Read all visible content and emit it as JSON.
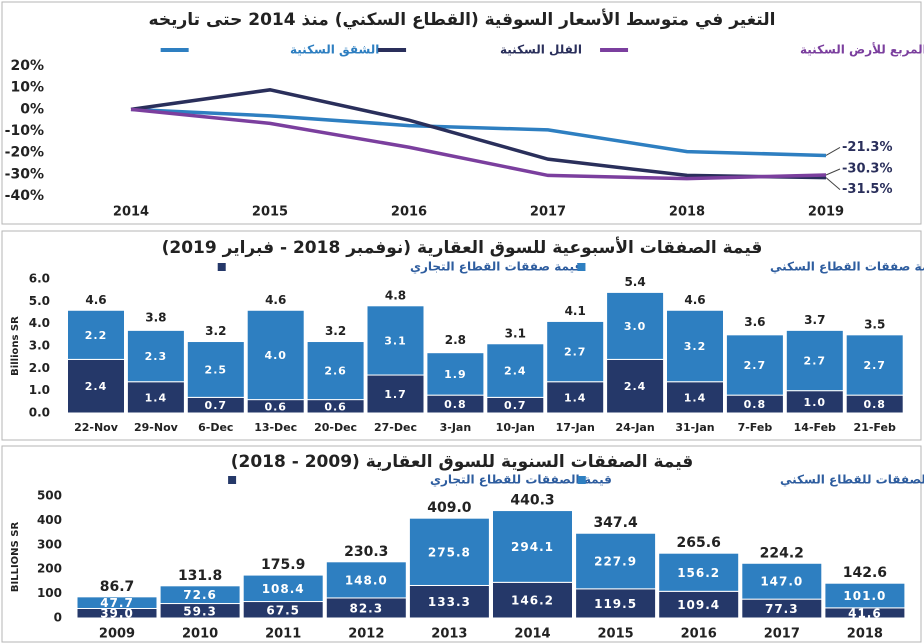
{
  "chart_data": [
    {
      "type": "line",
      "title": "التغير في متوسط الأسعار السوقية (القطاع السكني) منذ 2014 حتى تاريخه",
      "categories": [
        "2014",
        "2015",
        "2016",
        "2017",
        "2018",
        "2019"
      ],
      "series": [
        {
          "name": "الشقق السكنية",
          "color": "#2e7fc1",
          "values": [
            0,
            -3,
            -7.5,
            -9.5,
            -19.5,
            -21.3
          ],
          "value_labels": [
            null,
            null,
            null,
            null,
            null,
            "-21.3%"
          ]
        },
        {
          "name": "الفلل السكنية",
          "color": "#2a2f5b",
          "values": [
            0,
            9,
            -5,
            -23,
            -30.5,
            -31.5
          ],
          "value_labels": [
            null,
            null,
            null,
            null,
            null,
            "-31.5%"
          ]
        },
        {
          "name": "المتر المربع للأرض السكنية",
          "color": "#7b3f9e",
          "values": [
            0,
            -6.5,
            -17.5,
            -30.5,
            -32,
            -30.3
          ],
          "value_labels": [
            null,
            null,
            null,
            null,
            null,
            "-30.3%"
          ]
        }
      ],
      "ylim": [
        -40,
        20
      ],
      "yticks": [
        {
          "value": 20,
          "label": "20%"
        },
        {
          "value": 10,
          "label": "10%"
        },
        {
          "value": 0,
          "label": "0%"
        },
        {
          "value": -10,
          "label": "-10%"
        },
        {
          "value": -20,
          "label": "-20%"
        },
        {
          "value": -30,
          "label": "-30%"
        },
        {
          "value": -40,
          "label": "-40%"
        }
      ],
      "grid": false
    },
    {
      "type": "stacked_bar",
      "title": "قيمة الصفقات الأسبوعية للسوق العقارية (نوفمبر 2018 - فبراير 2019)",
      "ylabel": "Billions SR",
      "categories": [
        "22-Nov",
        "29-Nov",
        "6-Dec",
        "13-Dec",
        "20-Dec",
        "27-Dec",
        "3-Jan",
        "10-Jan",
        "17-Jan",
        "24-Jan",
        "31-Jan",
        "7-Feb",
        "14-Feb",
        "21-Feb"
      ],
      "series": [
        {
          "name": "قيمة صفقات القطاع التجاري",
          "color": "#253869",
          "values": [
            2.4,
            1.4,
            0.7,
            0.6,
            0.6,
            1.7,
            0.8,
            0.7,
            1.4,
            2.4,
            1.4,
            0.8,
            1.0,
            0.8
          ],
          "value_labels": [
            "2.4",
            "1.4",
            "0.7",
            "0.6",
            "0.6",
            "1.7",
            "0.8",
            "0.7",
            "1.4",
            "2.4",
            "1.4",
            "0.8",
            "1.0",
            "0.8"
          ]
        },
        {
          "name": "قيمة صفقات القطاع السكني",
          "color": "#2e7fc1",
          "values": [
            2.2,
            2.3,
            2.5,
            4.0,
            2.6,
            3.1,
            1.9,
            2.4,
            2.7,
            3.0,
            3.2,
            2.7,
            2.7,
            2.7
          ],
          "value_labels": [
            "2.2",
            "2.3",
            "2.5",
            "4.0",
            "2.6",
            "3.1",
            "1.9",
            "2.4",
            "2.7",
            "3.0",
            "3.2",
            "2.7",
            "2.7",
            "2.7"
          ]
        }
      ],
      "totals": [
        4.6,
        3.8,
        3.2,
        4.6,
        3.2,
        4.8,
        2.8,
        3.1,
        4.1,
        5.4,
        4.6,
        3.6,
        3.7,
        3.5
      ],
      "ylim": [
        0,
        6
      ],
      "yticks": [
        {
          "value": 0,
          "label": "0.0"
        },
        {
          "value": 1,
          "label": "1.0"
        },
        {
          "value": 2,
          "label": "2.0"
        },
        {
          "value": 3,
          "label": "3.0"
        },
        {
          "value": 4,
          "label": "4.0"
        },
        {
          "value": 5,
          "label": "5.0"
        },
        {
          "value": 6,
          "label": "6.0"
        }
      ],
      "grid": false
    },
    {
      "type": "stacked_bar",
      "title": "قيمة الصفقات السنوية للسوق العقارية (2009 - 2018)",
      "ylabel": "BILLIONS SR",
      "categories": [
        "2009",
        "2010",
        "2011",
        "2012",
        "2013",
        "2014",
        "2015",
        "2016",
        "2017",
        "2018"
      ],
      "series": [
        {
          "name": "قيمة الصفقات للقطاع التجاري",
          "color": "#253869",
          "values": [
            39.0,
            59.3,
            67.5,
            82.3,
            133.3,
            146.2,
            119.5,
            109.4,
            77.3,
            41.6
          ],
          "value_labels": [
            "39.0",
            "59.3",
            "67.5",
            "82.3",
            "133.3",
            "146.2",
            "119.5",
            "109.4",
            "77.3",
            "41.6"
          ]
        },
        {
          "name": "قيمة الصفقات للقطاع السكني",
          "color": "#2e7fc1",
          "values": [
            47.7,
            72.6,
            108.4,
            148.0,
            275.8,
            294.1,
            227.9,
            156.2,
            147.0,
            101.0
          ],
          "value_labels": [
            "47.7",
            "72.6",
            "108.4",
            "148.0",
            "275.8",
            "294.1",
            "227.9",
            "156.2",
            "147.0",
            "101.0"
          ]
        }
      ],
      "totals": [
        86.7,
        131.8,
        175.9,
        230.3,
        409.0,
        440.3,
        347.4,
        265.6,
        224.2,
        142.6
      ],
      "total_labels": [
        "86.7",
        "131.8",
        "175.9",
        "230.3",
        "409.0",
        "440.3",
        "347.4",
        "265.6",
        "224.2",
        "142.6"
      ],
      "ylim": [
        0,
        500
      ],
      "yticks": [
        0,
        100,
        200,
        300,
        400,
        500
      ],
      "grid": false
    }
  ]
}
